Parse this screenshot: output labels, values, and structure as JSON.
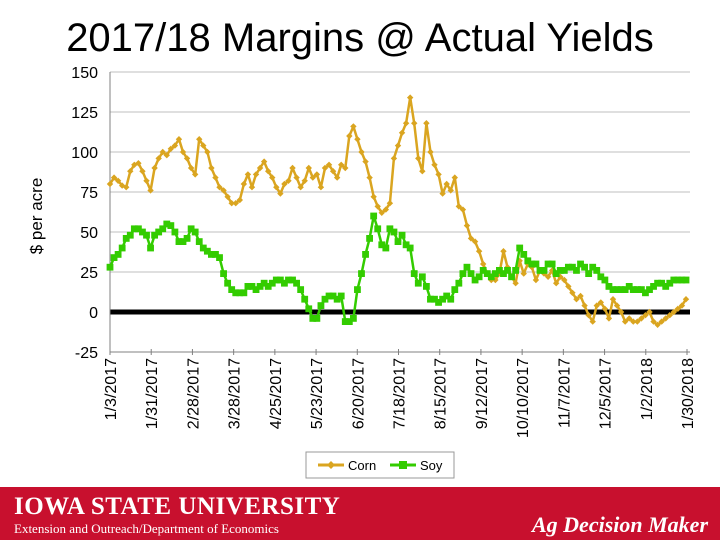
{
  "slide": {
    "title": "2017/18 Margins @ Actual Yields"
  },
  "footer": {
    "university": "Iowa State University",
    "department": "Extension and Outreach/Department of Economics",
    "program": "Ag Decision Maker",
    "band_color": "#c8102e"
  },
  "chart_data": {
    "type": "line",
    "title": "2017/18 Margins @ Actual Yields",
    "xlabel": "",
    "ylabel": "$ per acre",
    "ylim": [
      -25,
      150
    ],
    "yticks": [
      -25,
      0,
      25,
      50,
      75,
      100,
      125,
      150
    ],
    "grid": true,
    "legend_position": "bottom",
    "x_date_range": [
      "1/3/2017",
      "1/30/2018"
    ],
    "x_tick_labels": [
      "1/3/2017",
      "1/31/2017",
      "2/28/2017",
      "3/28/2017",
      "4/25/2017",
      "5/23/2017",
      "6/20/2017",
      "7/18/2017",
      "8/15/2017",
      "9/12/2017",
      "10/10/2017",
      "11/7/2017",
      "12/5/2017",
      "1/2/2018",
      "1/30/2018"
    ],
    "series": [
      {
        "name": "Corn",
        "color": "#daa520",
        "marker": "diamond",
        "values": [
          80,
          84,
          82,
          79,
          78,
          88,
          92,
          93,
          88,
          82,
          76,
          90,
          96,
          100,
          98,
          102,
          104,
          108,
          100,
          96,
          90,
          86,
          108,
          104,
          100,
          90,
          84,
          78,
          76,
          72,
          68,
          68,
          70,
          80,
          86,
          78,
          86,
          90,
          94,
          88,
          84,
          78,
          74,
          80,
          82,
          90,
          84,
          78,
          82,
          90,
          84,
          86,
          78,
          90,
          92,
          88,
          84,
          92,
          90,
          110,
          116,
          108,
          100,
          94,
          84,
          72,
          66,
          62,
          64,
          68,
          96,
          104,
          112,
          118,
          134,
          118,
          96,
          88,
          118,
          100,
          92,
          86,
          74,
          80,
          76,
          84,
          66,
          64,
          54,
          46,
          44,
          38,
          30,
          24,
          20,
          20,
          24,
          38,
          28,
          22,
          18,
          32,
          24,
          30,
          28,
          20,
          26,
          24,
          22,
          26,
          18,
          22,
          20,
          16,
          12,
          8,
          10,
          4,
          -2,
          -6,
          4,
          6,
          2,
          -4,
          8,
          4,
          0,
          -6,
          -4,
          -6,
          -6,
          -4,
          -2,
          0,
          -6,
          -8,
          -6,
          -4,
          -2,
          0,
          2,
          4,
          8
        ]
      },
      {
        "name": "Soy",
        "color": "#33cc00",
        "marker": "square",
        "values": [
          28,
          34,
          36,
          40,
          46,
          48,
          52,
          52,
          50,
          48,
          40,
          48,
          50,
          52,
          55,
          54,
          50,
          44,
          44,
          46,
          52,
          50,
          44,
          40,
          38,
          36,
          36,
          34,
          24,
          18,
          14,
          12,
          12,
          12,
          16,
          16,
          14,
          16,
          18,
          16,
          18,
          20,
          20,
          18,
          20,
          20,
          18,
          14,
          8,
          2,
          -4,
          -4,
          4,
          8,
          10,
          10,
          8,
          10,
          -6,
          -6,
          -4,
          14,
          24,
          36,
          46,
          60,
          52,
          42,
          40,
          52,
          50,
          44,
          48,
          42,
          40,
          24,
          18,
          22,
          16,
          8,
          8,
          6,
          8,
          10,
          8,
          14,
          18,
          24,
          28,
          24,
          20,
          22,
          26,
          24,
          22,
          24,
          26,
          24,
          26,
          22,
          26,
          40,
          36,
          32,
          30,
          30,
          26,
          26,
          30,
          30,
          24,
          26,
          26,
          28,
          28,
          26,
          30,
          28,
          24,
          28,
          26,
          22,
          20,
          16,
          14,
          14,
          14,
          14,
          16,
          14,
          14,
          14,
          12,
          14,
          16,
          18,
          18,
          16,
          18,
          20,
          20,
          20,
          20
        ]
      }
    ]
  }
}
